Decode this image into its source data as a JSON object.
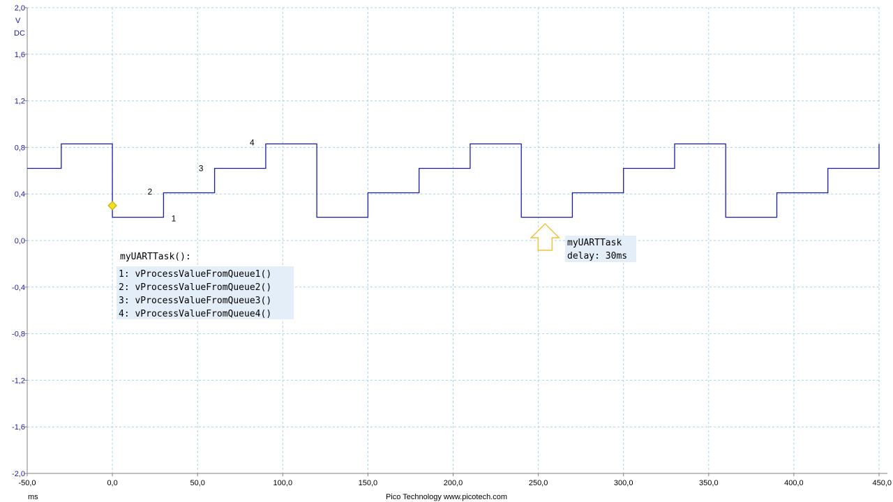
{
  "chart_data": {
    "type": "line",
    "title": "",
    "xlabel": "ms",
    "ylabel_unit": "V",
    "ylabel_coupling": "DC",
    "xlim": [
      -50,
      450
    ],
    "ylim": [
      -2.0,
      2.0
    ],
    "grid": true,
    "x_ticks": [
      -50,
      0,
      50,
      100,
      150,
      200,
      250,
      300,
      350,
      400,
      450
    ],
    "x_tick_labels": [
      "-50,0",
      "0,0",
      "50,0",
      "100,0",
      "150,0",
      "200,0",
      "250,0",
      "300,0",
      "350,0",
      "400,0",
      "450,0"
    ],
    "y_ticks": [
      -2.0,
      -1.6,
      -1.2,
      -0.8,
      -0.4,
      0.0,
      0.4,
      0.8,
      1.2,
      1.6,
      2.0
    ],
    "y_tick_labels": [
      "-2,0",
      "-1,6",
      "-1,2",
      "-0,8",
      "-0,4",
      "0,0",
      "0,4",
      "0,8",
      "1,2",
      "1,6",
      "2,0"
    ],
    "series": [
      {
        "color": "#1a1ab0",
        "x": [
          -50,
          -30,
          -30,
          0,
          0,
          30,
          30,
          60,
          60,
          90,
          90,
          120,
          120,
          150,
          150,
          180,
          180,
          210,
          210,
          240,
          240,
          270,
          270,
          300,
          300,
          330,
          330,
          360,
          360,
          390,
          390,
          420,
          420,
          450,
          450
        ],
        "y": [
          0.62,
          0.62,
          0.83,
          0.83,
          0.2,
          0.2,
          0.41,
          0.41,
          0.62,
          0.62,
          0.83,
          0.83,
          0.2,
          0.2,
          0.41,
          0.41,
          0.62,
          0.62,
          0.83,
          0.83,
          0.2,
          0.2,
          0.41,
          0.41,
          0.62,
          0.62,
          0.83,
          0.83,
          0.2,
          0.2,
          0.41,
          0.41,
          0.62,
          0.62,
          0.83
        ]
      }
    ],
    "trigger": {
      "x": 0,
      "y": 0.3,
      "color": "#f0e020"
    },
    "step_markers": [
      {
        "label": "1",
        "x": 36,
        "y": 0.19
      },
      {
        "label": "2",
        "x": 22,
        "y": 0.42
      },
      {
        "label": "3",
        "x": 52,
        "y": 0.62
      },
      {
        "label": "4",
        "x": 82,
        "y": 0.84
      }
    ],
    "annotations": {
      "legend_title": "myUARTTask():",
      "legend_lines": [
        "1: vProcessValueFromQueue1()",
        "2: vProcessValueFromQueue2()",
        "3: vProcessValueFromQueue3()",
        "4: vProcessValueFromQueue4()"
      ],
      "delay_arrow": {
        "x": 254,
        "y": 0.0,
        "color": "#f0c040"
      },
      "delay_lines": [
        "myUARTTask",
        "delay: 30ms"
      ]
    },
    "footer": "Pico Technology   www.picotech.com"
  }
}
